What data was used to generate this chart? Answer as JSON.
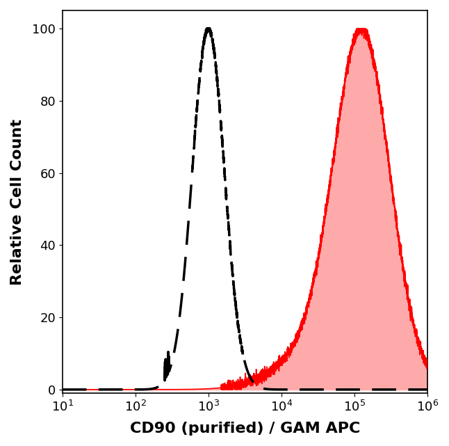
{
  "xlabel": "CD90 (purified) / GAM APC",
  "ylabel": "Relative Cell Count",
  "xlim_log": [
    10,
    1000000
  ],
  "ylim": [
    -1,
    105
  ],
  "yticks": [
    0,
    20,
    40,
    60,
    80,
    100
  ],
  "xticks_log": [
    10,
    100,
    1000,
    10000,
    100000,
    1000000
  ],
  "background_color": "#ffffff",
  "dashed_peak_log": 1000,
  "dashed_sigma": 0.22,
  "red_peak_log": 130000,
  "red_sigma": 0.38,
  "dashed_color": "#000000",
  "red_fill_color": "#ffaaaa",
  "red_line_color": "#ff0000",
  "noise_seed": 7,
  "xlabel_fontsize": 16,
  "ylabel_fontsize": 16,
  "tick_fontsize": 13,
  "spine_linewidth": 1.2,
  "dash_linewidth": 2.5,
  "red_linewidth": 1.2,
  "figsize": [
    6.46,
    6.41
  ],
  "dpi": 100
}
